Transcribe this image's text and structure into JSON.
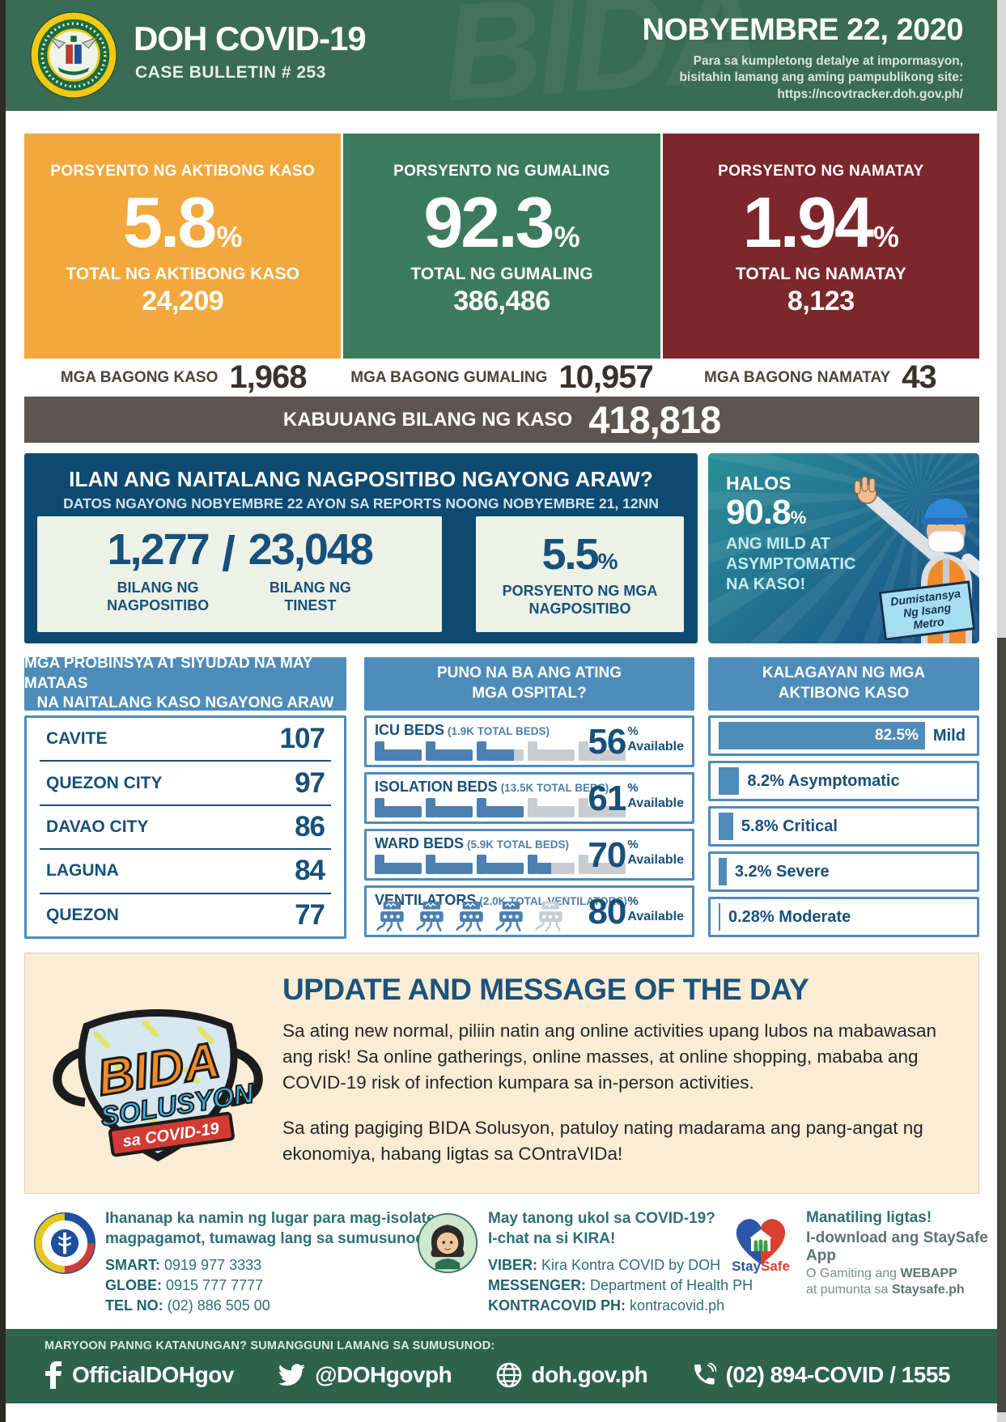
{
  "colors": {
    "header_green": "#3A6B55",
    "footer_green": "#2D624E",
    "orange": "#F2A83C",
    "green": "#3C7A5E",
    "red": "#7B272B",
    "taupe": "#5E5450",
    "navy_panel": "#0E4A70",
    "mid_blue": "#4E8CBA",
    "navy_text": "#17507A",
    "card_bg": "#EDF1E6",
    "cream": "#FBEDD5",
    "title_blue": "#1B537B",
    "teal": "#2F6F76",
    "icon_blue": "#4C80B3",
    "icon_gray": "#C9CDD2",
    "illus_teal": "#2B8F96",
    "illus_blue": "#164E86"
  },
  "header": {
    "title": "DOH COVID-19",
    "subtitle": "CASE BULLETIN # 253",
    "date": "NOBYEMBRE 22, 2020",
    "note1": "Para sa kumpletong detalye at impormasyon,",
    "note2": "bisitahin lamang ang aming pampublikong site:",
    "note3": "https://ncovtracker.doh.gov.ph/",
    "watermark": "BIDA"
  },
  "stat_cards": [
    {
      "label": "PORSYENTO NG AKTIBONG KASO",
      "percent": "5.8",
      "percent_sign": "%",
      "total_label": "TOTAL NG AKTIBONG KASO",
      "total": "24,209"
    },
    {
      "label": "PORSYENTO NG GUMALING",
      "percent": "92.3",
      "percent_sign": "%",
      "total_label": "TOTAL NG GUMALING",
      "total": "386,486"
    },
    {
      "label": "PORSYENTO NG NAMATAY",
      "percent": "1.94",
      "percent_sign": "%",
      "total_label": "TOTAL NG NAMATAY",
      "total": "8,123"
    }
  ],
  "new_cases": [
    {
      "label": "MGA BAGONG KASO",
      "value": "1,968"
    },
    {
      "label": "MGA BAGONG GUMALING",
      "value": "10,957"
    },
    {
      "label": "MGA BAGONG NAMATAY",
      "value": "43"
    }
  ],
  "total_bar": {
    "label": "KABUUANG BILANG NG KASO",
    "value": "418,818"
  },
  "positivity": {
    "title": "ILAN ANG NAITALANG NAGPOSITIBO NGAYONG ARAW?",
    "subtitle": "DATOS NGAYONG NOBYEMBRE 22 AYON SA REPORTS NOONG NOBYEMBRE 21, 12NN",
    "positive": "1,277",
    "separator": "/",
    "tested": "23,048",
    "positive_label_1": "BILANG NG",
    "positive_label_2": "NAGPOSITIBO",
    "tested_label_1": "BILANG NG",
    "tested_label_2": "TINEST",
    "rate": "5.5",
    "rate_sign": "%",
    "rate_label_1": "PORSYENTO NG MGA",
    "rate_label_2": "NAGPOSITIBO"
  },
  "mild_panel": {
    "intro": "HALOS",
    "percent": "90.8",
    "percent_sign": "%",
    "line1": "ANG MILD AT",
    "line2": "ASYMPTOMATIC",
    "line3": "NA KASO!",
    "sign_line1": "Dumistansya",
    "sign_line2": "Ng Isang",
    "sign_line3": "Metro"
  },
  "provinces": {
    "header_1": "MGA PROBINSYA AT SIYUDAD NA MAY MATAAS",
    "header_2": "NA NAITALANG KASO NGAYONG ARAW",
    "rows": [
      {
        "name": "CAVITE",
        "value": "107"
      },
      {
        "name": "QUEZON CITY",
        "value": "97"
      },
      {
        "name": "DAVAO CITY",
        "value": "86"
      },
      {
        "name": "LAGUNA",
        "value": "84"
      },
      {
        "name": "QUEZON",
        "value": "77"
      }
    ]
  },
  "hospitals": {
    "header_1": "PUNO NA BA ANG ATING",
    "header_2": "MGA OSPITAL?",
    "percent_sign": "%",
    "available_label": "Available",
    "items": [
      {
        "name": "ICU BEDS",
        "detail": "(1.9K TOTAL BEDS)",
        "percent": "56",
        "icon": "bed-icon",
        "units": [
          1,
          1,
          0.8,
          0,
          0
        ]
      },
      {
        "name": "ISOLATION BEDS",
        "detail": "(13.5K TOTAL BEDS)",
        "percent": "61",
        "icon": "bed-icon",
        "units": [
          1,
          1,
          1,
          0,
          0
        ]
      },
      {
        "name": "WARD BEDS",
        "detail": "(5.9K TOTAL BEDS)",
        "percent": "70",
        "icon": "bed-icon",
        "units": [
          1,
          1,
          1,
          0.5,
          0
        ]
      },
      {
        "name": "VENTILATORS",
        "detail": "(2.0K TOTAL VENTILATORS)",
        "percent": "80",
        "icon": "vent-icon",
        "units": [
          1,
          1,
          1,
          1,
          0
        ]
      }
    ]
  },
  "active_status": {
    "header_1": "KALAGAYAN NG MGA",
    "header_2": "AKTIBONG KASO",
    "bars": [
      {
        "percent": "82.5%",
        "label": "Mild",
        "width": 82.5
      },
      {
        "percent": "8.2%",
        "label": "Asymptomatic",
        "width": 8.2
      },
      {
        "percent": "5.8%",
        "label": "Critical",
        "width": 5.8
      },
      {
        "percent": "3.2%",
        "label": "Severe",
        "width": 3.2
      },
      {
        "percent": "0.28%",
        "label": "Moderate",
        "width": 0.28
      }
    ]
  },
  "message": {
    "title": "UPDATE AND MESSAGE OF THE DAY",
    "para1": "Sa ating new normal, piliin natin ang online activities upang lubos na mabawasan ang risk! Sa online gatherings, online masses, at online shopping, mababa ang COVID-19 risk of infection kumpara sa in-person activities.",
    "para2": "Sa ating pagiging BIDA Solusyon, patuloy nating madarama ang pang-angat ng ekonomiya, habang ligtas sa COntraVIDa!",
    "logo_line1": "BIDA",
    "logo_line2": "SOLUSYON",
    "logo_line3": "sa COVID-19"
  },
  "contacts": {
    "isolation": {
      "intro_1": "Ihananap ka namin ng lugar para mag-isolate o",
      "intro_2": "magpagamot, tumawag lang sa sumusunod:",
      "rows": [
        {
          "label": "SMART:",
          "value": "0919 977 3333"
        },
        {
          "label": "GLOBE:",
          "value": "0915 777 7777"
        },
        {
          "label": "TEL NO:",
          "value": "(02) 886 505 00"
        }
      ]
    },
    "kira": {
      "intro_1": "May tanong ukol sa COVID-19?",
      "intro_2": "I-chat na si KIRA!",
      "rows": [
        {
          "label": "VIBER:",
          "value": "Kira Kontra COVID by DOH"
        },
        {
          "label": "MESSENGER:",
          "value": "Department of Health PH"
        },
        {
          "label": "KONTRACOVID PH:",
          "value": "kontracovid.ph"
        }
      ]
    },
    "staysafe": {
      "logo_part1": "Stay",
      "logo_part2": "Safe",
      "line1": "Manatiling ligtas!",
      "line2": "I-download ang StaySafe App",
      "line3_a": "O Gamiting ang",
      "line3_b": "WEBAPP",
      "line4_a": "at pumunta sa",
      "line4_b": "Staysafe.ph"
    }
  },
  "footer": {
    "question": "MARYOON PANNG KATANUNGAN? SUMANGGUNI LAMANG SA SUMUSUNOD:",
    "items": [
      {
        "icon": "facebook-icon",
        "text": "OfficialDOHgov"
      },
      {
        "icon": "twitter-icon",
        "text": "@DOHgovph"
      },
      {
        "icon": "globe-icon",
        "text": "doh.gov.ph"
      },
      {
        "icon": "phone-icon",
        "text": "(02) 894-COVID  /  1555"
      }
    ]
  }
}
